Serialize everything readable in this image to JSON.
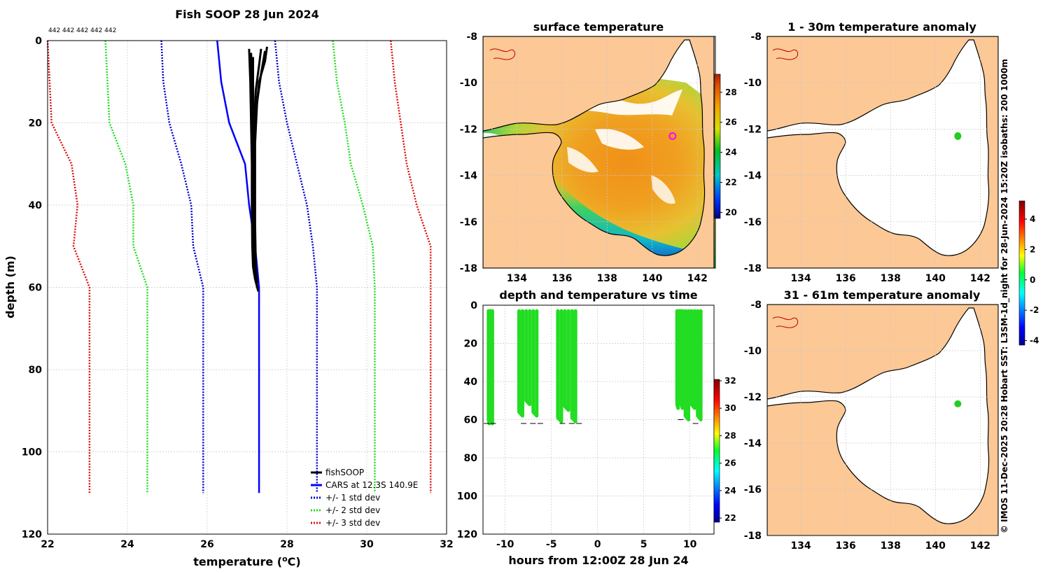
{
  "credit": "© IMOS 11-Dec-2025 20:28 Hobart SST: L3SM-1d_night for 28-Jun-2024 15:20Z isobaths: 200  1000m",
  "chart_data": [
    {
      "id": "profile",
      "type": "line",
      "title": "Fish SOOP 28 Jun 2024",
      "xlabel_pre": "temperature (",
      "xlabel_sup": "o",
      "xlabel_post": "C)",
      "ylabel": "depth (m)",
      "xlim": [
        22,
        32
      ],
      "ylim": [
        0,
        120
      ],
      "xticks": [
        22,
        24,
        26,
        28,
        30,
        32
      ],
      "yticks": [
        0,
        20,
        40,
        60,
        80,
        100,
        120
      ],
      "top_annotation": "442 442 442 442 442",
      "legend": [
        "fishSOOP",
        "CARS at 12.3S 140.9E",
        "+/- 1 std dev",
        "+/- 2 std dev",
        "+/- 3 std dev"
      ],
      "colors": {
        "fish": "#000000",
        "cars": "#0000ff",
        "std1": "#0000cc",
        "std2": "#22dd22",
        "std3": "#dd1111"
      },
      "series": [
        {
          "name": "CARS",
          "depth": [
            0,
            10,
            20,
            30,
            40,
            50,
            55,
            60,
            110
          ],
          "temp": [
            26.25,
            26.35,
            26.55,
            26.95,
            27.05,
            27.2,
            27.25,
            27.3,
            27.3
          ]
        },
        {
          "name": "minus1",
          "depth": [
            0,
            10,
            20,
            30,
            40,
            50,
            60,
            110
          ],
          "temp": [
            24.85,
            24.9,
            25.05,
            25.35,
            25.6,
            25.65,
            25.9,
            25.9
          ]
        },
        {
          "name": "plus1",
          "depth": [
            0,
            10,
            20,
            30,
            40,
            50,
            60,
            110
          ],
          "temp": [
            27.7,
            27.8,
            28.0,
            28.25,
            28.5,
            28.65,
            28.75,
            28.75
          ]
        },
        {
          "name": "minus2",
          "depth": [
            0,
            10,
            20,
            30,
            40,
            50,
            60,
            110
          ],
          "temp": [
            23.45,
            23.5,
            23.55,
            23.95,
            24.15,
            24.15,
            24.5,
            24.5
          ]
        },
        {
          "name": "plus2",
          "depth": [
            0,
            10,
            20,
            30,
            40,
            50,
            60,
            110
          ],
          "temp": [
            29.15,
            29.25,
            29.45,
            29.6,
            29.9,
            30.15,
            30.2,
            30.2
          ]
        },
        {
          "name": "minus3",
          "depth": [
            0,
            10,
            20,
            30,
            40,
            50,
            60,
            110
          ],
          "temp": [
            22.0,
            22.05,
            22.1,
            22.6,
            22.75,
            22.65,
            23.05,
            23.05
          ]
        },
        {
          "name": "plus3",
          "depth": [
            0,
            10,
            20,
            30,
            40,
            50,
            60,
            110
          ],
          "temp": [
            30.6,
            30.7,
            30.85,
            31.0,
            31.25,
            31.6,
            31.6,
            31.6
          ]
        }
      ],
      "fish_profiles": [
        {
          "depth": [
            2,
            10,
            20,
            30,
            40,
            50,
            55,
            58
          ],
          "temp": [
            27.05,
            27.08,
            27.1,
            27.12,
            27.12,
            27.13,
            27.15,
            27.2
          ]
        },
        {
          "depth": [
            3,
            10,
            20,
            30,
            40,
            50,
            56,
            60
          ],
          "temp": [
            27.1,
            27.12,
            27.13,
            27.15,
            27.15,
            27.17,
            27.2,
            27.25
          ]
        },
        {
          "depth": [
            2,
            6,
            12,
            20,
            30,
            40,
            50,
            57
          ],
          "temp": [
            27.35,
            27.3,
            27.22,
            27.18,
            27.16,
            27.15,
            27.15,
            27.18
          ]
        },
        {
          "depth": [
            1.5,
            5,
            10,
            20,
            30,
            40,
            50,
            58
          ],
          "temp": [
            27.5,
            27.45,
            27.3,
            27.2,
            27.18,
            27.18,
            27.17,
            27.2
          ]
        },
        {
          "depth": [
            4,
            10,
            20,
            30,
            40,
            50,
            58,
            61
          ],
          "temp": [
            27.15,
            27.15,
            27.16,
            27.17,
            27.18,
            27.2,
            27.2,
            27.28
          ]
        },
        {
          "depth": [
            2.5,
            8,
            15,
            25,
            35,
            45,
            55,
            59
          ],
          "temp": [
            27.45,
            27.35,
            27.25,
            27.2,
            27.2,
            27.2,
            27.22,
            27.25
          ]
        }
      ]
    },
    {
      "id": "map_sst",
      "type": "heatmap",
      "title": "surface temperature",
      "xticks": [
        134,
        136,
        138,
        140,
        142
      ],
      "yticks": [
        -8,
        -10,
        -12,
        -14,
        -16,
        -18
      ],
      "xlim": [
        132.5,
        142.8
      ],
      "ylim": [
        -18,
        -8
      ],
      "colorbar_ticks": [
        20,
        22,
        24,
        26,
        28
      ],
      "colorbar_range": [
        19.6,
        29.2
      ],
      "marker_lon": 140.9,
      "marker_lat": -12.3
    },
    {
      "id": "time_series",
      "type": "scatter",
      "title": "depth and temperature vs time",
      "xlabel": "hours from 12:00Z 28 Jun 24",
      "xticks": [
        -10,
        -5,
        0,
        5,
        10
      ],
      "yticks": [
        0,
        20,
        40,
        60,
        80,
        100,
        120
      ],
      "xlim": [
        -12.4,
        12.6
      ],
      "ylim": [
        0,
        120
      ],
      "colorbar_ticks": [
        22,
        24,
        26,
        28,
        30,
        32
      ],
      "colorbar_range": [
        21.7,
        32.1
      ],
      "casts": [
        {
          "t0": -11.8,
          "t1": -11.3,
          "bottom": 60
        },
        {
          "t0": -8.5,
          "t1": -6.2,
          "bottom": 56
        },
        {
          "t0": -4.3,
          "t1": -2.0,
          "bottom": 59
        },
        {
          "t0": 8.6,
          "t1": 9.3,
          "bottom": 52
        },
        {
          "t0": 9.5,
          "t1": 11.5,
          "bottom": 58
        }
      ],
      "bottom_depth_marks": [
        {
          "t": -12.0,
          "d": 62
        },
        {
          "t": -11.3,
          "d": 62
        },
        {
          "t": -8.0,
          "d": 62
        },
        {
          "t": -7.0,
          "d": 62
        },
        {
          "t": -6.2,
          "d": 62
        },
        {
          "t": -3.8,
          "d": 62
        },
        {
          "t": -2.8,
          "d": 62
        },
        {
          "t": -2.0,
          "d": 62
        },
        {
          "t": 9.0,
          "d": 60
        },
        {
          "t": 10.6,
          "d": 62
        }
      ]
    },
    {
      "id": "anom1",
      "type": "heatmap",
      "title": "1 - 30m temperature anomaly",
      "xticks": [
        134,
        136,
        138,
        140,
        142
      ],
      "yticks": [
        -8,
        -10,
        -12,
        -14,
        -16,
        -18
      ],
      "xlim": [
        132.5,
        142.8
      ],
      "ylim": [
        -18,
        -8
      ],
      "marker_lon": 141.0,
      "marker_lat": -12.3,
      "colorbar_ticks": [
        -4,
        -2,
        0,
        2,
        4
      ],
      "colorbar_range": [
        -4.3,
        5.2
      ]
    },
    {
      "id": "anom2",
      "type": "heatmap",
      "title": "31 - 61m temperature anomaly",
      "xticks": [
        134,
        136,
        138,
        140,
        142
      ],
      "yticks": [
        -8,
        -10,
        -12,
        -14,
        -16,
        -18
      ],
      "xlim": [
        132.5,
        142.8
      ],
      "ylim": [
        -18,
        -8
      ],
      "marker_lon": 141.0,
      "marker_lat": -12.3
    }
  ]
}
